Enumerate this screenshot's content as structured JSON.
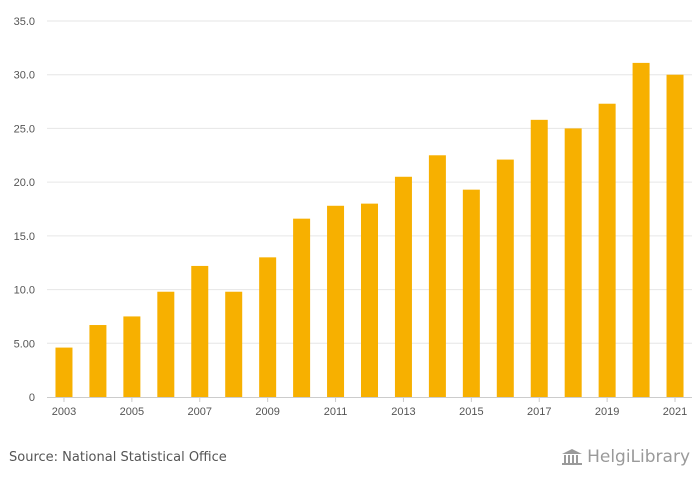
{
  "chart_data": {
    "type": "bar",
    "categories": [
      "2003",
      "2004",
      "2005",
      "2006",
      "2007",
      "2008",
      "2009",
      "2010",
      "2011",
      "2012",
      "2013",
      "2014",
      "2015",
      "2016",
      "2017",
      "2018",
      "2019",
      "2020",
      "2021"
    ],
    "values": [
      4.6,
      6.7,
      7.5,
      9.8,
      12.2,
      9.8,
      13.0,
      16.6,
      17.8,
      18.0,
      20.5,
      22.5,
      19.3,
      22.1,
      25.8,
      25.0,
      27.3,
      31.1,
      30.0
    ],
    "x_tick_labels": [
      "2003",
      "2005",
      "2007",
      "2009",
      "2011",
      "2013",
      "2015",
      "2017",
      "2019",
      "2021"
    ],
    "y_ticks": [
      {
        "value": 0,
        "label": "0"
      },
      {
        "value": 5,
        "label": "5.00"
      },
      {
        "value": 10,
        "label": "10.0"
      },
      {
        "value": 15,
        "label": "15.0"
      },
      {
        "value": 20,
        "label": "20.0"
      },
      {
        "value": 25,
        "label": "25.0"
      },
      {
        "value": 30,
        "label": "30.0"
      },
      {
        "value": 35,
        "label": "35.0"
      }
    ],
    "ylim": [
      0,
      35
    ],
    "title": "",
    "xlabel": "",
    "ylabel": "",
    "grid": true,
    "bar_color": "#F7B000"
  },
  "footer": {
    "source": "Source: National Statistical Office",
    "brand": "HelgiLibrary"
  },
  "colors": {
    "grid": "#e6e6e6",
    "axis": "#cccccc",
    "text": "#555555",
    "brand": "#9a9a9a"
  }
}
